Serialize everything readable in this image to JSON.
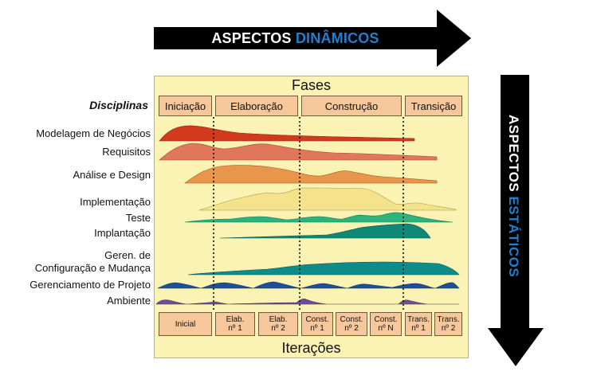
{
  "arrows": {
    "dynamic": {
      "prefix": "ASPECTOS ",
      "highlight": "DINÂMICOS"
    },
    "static": {
      "prefix": "ASPECTOS ",
      "highlight": "ESTÁTICOS"
    }
  },
  "panel": {
    "title": "Fases",
    "footer": "Iterações"
  },
  "phases": [
    "Iniciação",
    "Elaboração",
    "Construção",
    "Transição"
  ],
  "disciplines_title": "Disciplinas",
  "disciplines": [
    {
      "lines": [
        "Modelagem de Negócios"
      ],
      "color": "#d23a1c"
    },
    {
      "lines": [
        "Requisitos"
      ],
      "color": "#e0775a"
    },
    {
      "lines": [
        "Análise e Design"
      ],
      "color": "#e8964c"
    },
    {
      "lines": [
        "Implementação"
      ],
      "color": "#f4e38c"
    },
    {
      "lines": [
        "Teste"
      ],
      "color": "#2ab37c"
    },
    {
      "lines": [
        "Implantação"
      ],
      "color": "#0f8878"
    },
    {
      "lines": [
        "Geren. de",
        "Configuração e Mudança"
      ],
      "color": "#0e8c8c"
    },
    {
      "lines": [
        "Gerenciamento de Projeto"
      ],
      "color": "#1e4e9a"
    },
    {
      "lines": [
        "Ambiente"
      ],
      "color": "#6d4f99"
    }
  ],
  "iterations": [
    {
      "lines": [
        "Inicial"
      ]
    },
    {
      "lines": [
        "Elab.",
        "nº 1"
      ]
    },
    {
      "lines": [
        "Elab.",
        "nº 2"
      ]
    },
    {
      "lines": [
        "Const.",
        "nº 1"
      ]
    },
    {
      "lines": [
        "Const.",
        "nº 2"
      ]
    },
    {
      "lines": [
        "Const.",
        "nº N"
      ]
    },
    {
      "lines": [
        "Trans.",
        "nº 1"
      ]
    },
    {
      "lines": [
        "Trans.",
        "nº 2"
      ]
    }
  ],
  "colors": {
    "panel": "#fbf3b3",
    "box": "#f6c79a",
    "arrow": "#000000",
    "highlight": "#1f7fd0"
  }
}
